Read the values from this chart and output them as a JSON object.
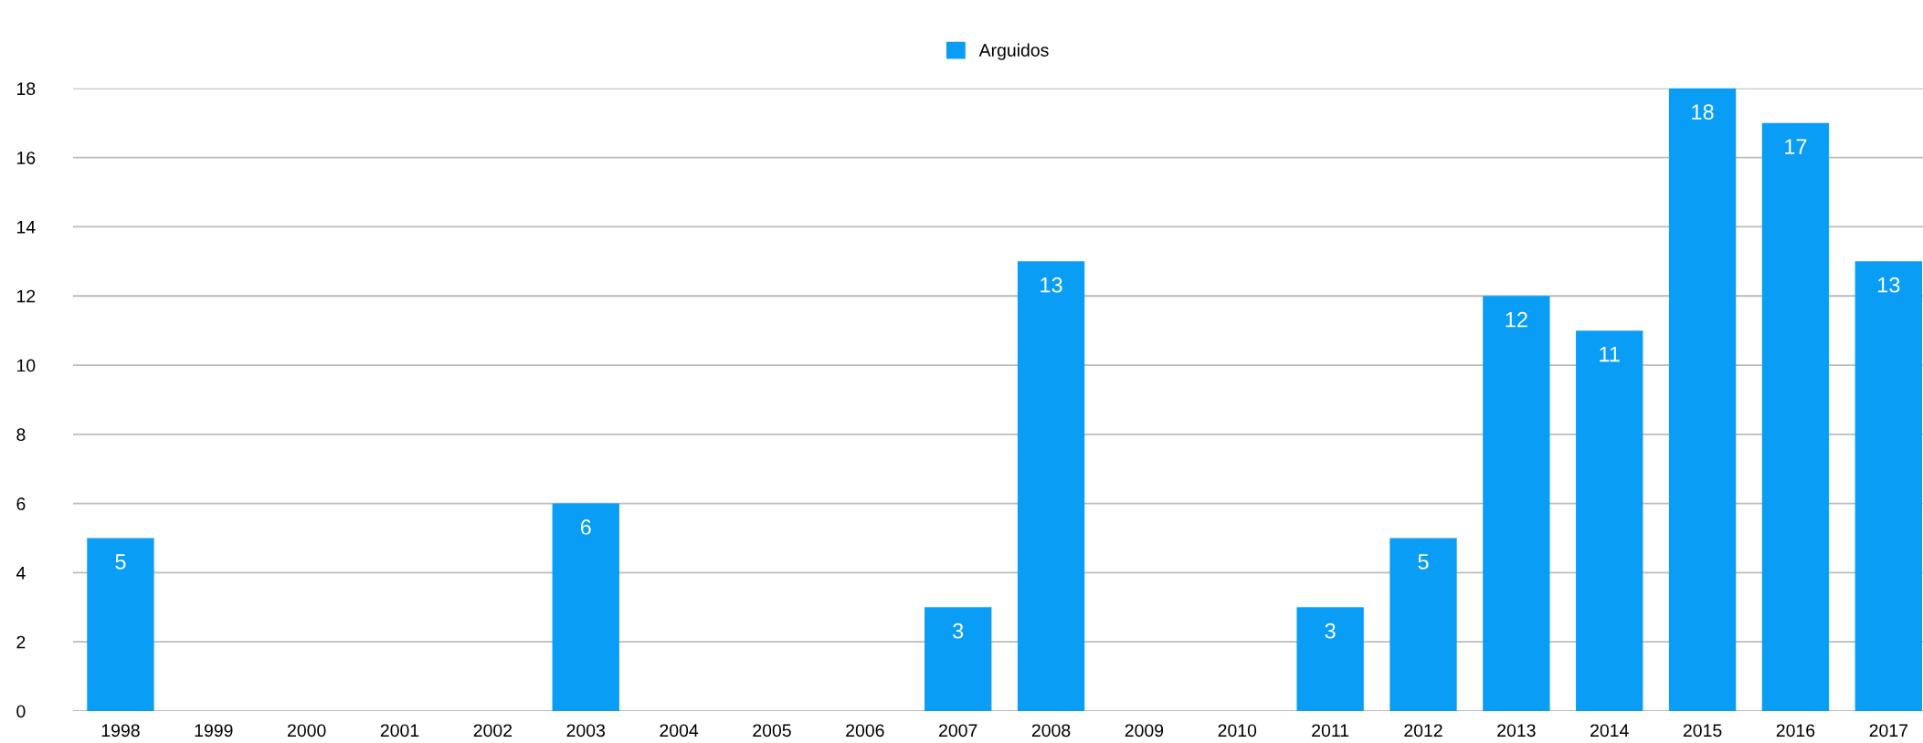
{
  "chart_data": {
    "type": "bar",
    "categories": [
      "1998",
      "1999",
      "2000",
      "2001",
      "2002",
      "2003",
      "2004",
      "2005",
      "2006",
      "2007",
      "2008",
      "2009",
      "2010",
      "2011",
      "2012",
      "2013",
      "2014",
      "2015",
      "2016",
      "2017"
    ],
    "series": [
      {
        "name": "Arguidos",
        "color": "#0a9df5",
        "values": [
          5,
          0,
          0,
          0,
          0,
          6,
          0,
          0,
          0,
          3,
          13,
          0,
          0,
          3,
          5,
          12,
          11,
          18,
          17,
          13
        ],
        "value_labels": [
          "5",
          null,
          null,
          null,
          null,
          "6",
          null,
          null,
          null,
          "3",
          "13",
          null,
          null,
          "3",
          "5",
          "12",
          "11",
          "18",
          "17",
          "13"
        ]
      }
    ],
    "ylim": [
      0,
      18
    ],
    "yticks": [
      0,
      2,
      4,
      6,
      8,
      10,
      12,
      14,
      16,
      18
    ],
    "grid": "y",
    "legend": "top"
  }
}
